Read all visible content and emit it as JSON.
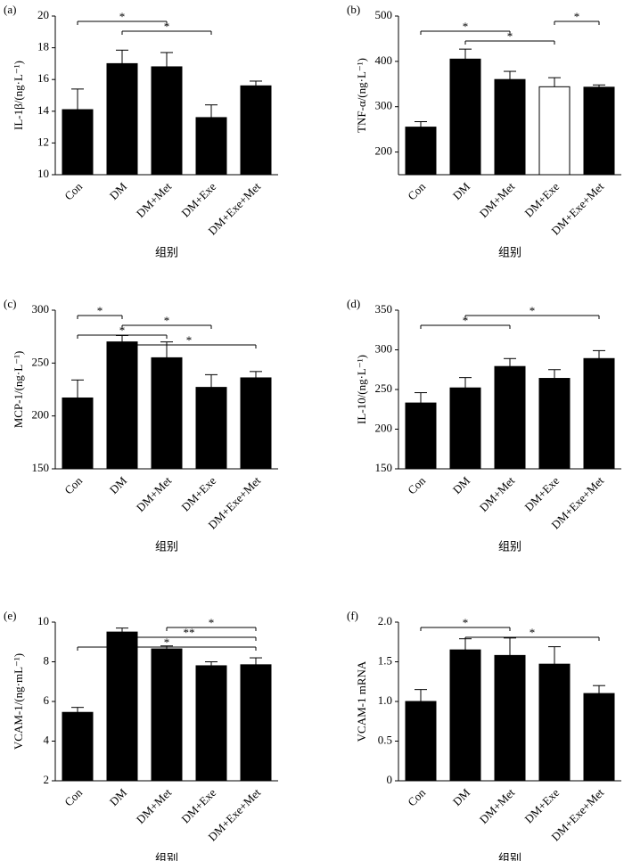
{
  "chart_data": [
    {
      "type": "bar",
      "panel": "(a)",
      "ylabel": "IL-1β/(ng·L⁻¹)",
      "xlabel": "组别",
      "categories": [
        "Con",
        "DM",
        "DM+Met",
        "DM+Exe",
        "DM+Exe+Met"
      ],
      "values": [
        14.1,
        17.0,
        16.8,
        13.6,
        15.6
      ],
      "errors": [
        1.3,
        0.85,
        0.9,
        0.8,
        0.3
      ],
      "colors": [
        "#000000",
        "#000000",
        "#000000",
        "#000000",
        "#000000"
      ],
      "ylim": [
        10,
        20
      ],
      "yticks": [
        10,
        12,
        14,
        16,
        18,
        20
      ],
      "significance": [
        {
          "groups": [
            "Con",
            "DM+Met"
          ],
          "label": "*"
        },
        {
          "groups": [
            "DM",
            "DM+Exe"
          ],
          "label": "*"
        }
      ]
    },
    {
      "type": "bar",
      "panel": "(b)",
      "ylabel": "TNF-α/(ng·L⁻¹)",
      "xlabel": "组别",
      "categories": [
        "Con",
        "DM",
        "DM+Met",
        "DM+Exe",
        "DM+Exe+Met"
      ],
      "values": [
        255,
        405,
        360,
        344,
        343
      ],
      "errors": [
        12,
        22,
        18,
        20,
        5
      ],
      "colors": [
        "#000000",
        "#000000",
        "#000000",
        "#ffffff",
        "#000000"
      ],
      "ylim": [
        150,
        500
      ],
      "yticks": [
        200,
        300,
        400,
        500
      ],
      "significance": [
        {
          "groups": [
            "DM+Exe",
            "DM+Exe+Met"
          ],
          "label": "*"
        },
        {
          "groups": [
            "Con",
            "DM+Met"
          ],
          "label": "*"
        },
        {
          "groups": [
            "DM",
            "DM+Exe"
          ],
          "label": "*"
        }
      ]
    },
    {
      "type": "bar",
      "panel": "(c)",
      "ylabel": "MCP-1/(ng·L⁻¹)",
      "xlabel": "组别",
      "categories": [
        "Con",
        "DM",
        "DM+Met",
        "DM+Exe",
        "DM+Exe+Met"
      ],
      "values": [
        217,
        270,
        255,
        227,
        236
      ],
      "errors": [
        17,
        6,
        15,
        12,
        6
      ],
      "colors": [
        "#000000",
        "#000000",
        "#000000",
        "#000000",
        "#000000"
      ],
      "ylim": [
        150,
        300
      ],
      "yticks": [
        150,
        200,
        250,
        300
      ],
      "significance": [
        {
          "groups": [
            "Con",
            "DM"
          ],
          "label": "*"
        },
        {
          "groups": [
            "DM",
            "DM+Exe"
          ],
          "label": "*"
        },
        {
          "groups": [
            "Con",
            "DM+Met"
          ],
          "label": "*"
        },
        {
          "groups": [
            "DM",
            "DM+Exe+Met"
          ],
          "label": "*"
        }
      ]
    },
    {
      "type": "bar",
      "panel": "(d)",
      "ylabel": "IL-10/(ng·L⁻¹)",
      "xlabel": "组别",
      "categories": [
        "Con",
        "DM",
        "DM+Met",
        "DM+Exe",
        "DM+Exe+Met"
      ],
      "values": [
        233,
        252,
        279,
        264,
        289
      ],
      "errors": [
        13,
        13,
        10,
        11,
        10
      ],
      "colors": [
        "#000000",
        "#000000",
        "#000000",
        "#000000",
        "#000000"
      ],
      "ylim": [
        150,
        350
      ],
      "yticks": [
        150,
        200,
        250,
        300,
        350
      ],
      "significance": [
        {
          "groups": [
            "DM",
            "DM+Exe+Met"
          ],
          "label": "*"
        },
        {
          "groups": [
            "Con",
            "DM+Met"
          ],
          "label": "*"
        }
      ]
    },
    {
      "type": "bar",
      "panel": "(e)",
      "ylabel": "VCAM-1/(ng·mL⁻¹)",
      "xlabel": "组别",
      "categories": [
        "Con",
        "DM",
        "DM+Met",
        "DM+Exe",
        "DM+Exe+Met"
      ],
      "values": [
        5.45,
        9.5,
        8.65,
        7.8,
        7.85
      ],
      "errors": [
        0.25,
        0.2,
        0.15,
        0.2,
        0.35
      ],
      "colors": [
        "#000000",
        "#000000",
        "#000000",
        "#000000",
        "#000000"
      ],
      "ylim": [
        2,
        10
      ],
      "yticks": [
        2,
        4,
        6,
        8,
        10
      ],
      "significance": [
        {
          "groups": [
            "DM+Met",
            "DM+Exe+Met"
          ],
          "label": "*"
        },
        {
          "groups": [
            "DM",
            "DM+Exe+Met"
          ],
          "label": "**"
        },
        {
          "groups": [
            "Con",
            "DM+Exe+Met"
          ],
          "label": "*"
        }
      ]
    },
    {
      "type": "bar",
      "panel": "(f)",
      "ylabel": "VCAM-1 mRNA",
      "xlabel": "组别",
      "categories": [
        "Con",
        "DM",
        "DM+Met",
        "DM+Exe",
        "DM+Exe+Met"
      ],
      "values": [
        1.0,
        1.65,
        1.58,
        1.47,
        1.1
      ],
      "errors": [
        0.15,
        0.14,
        0.22,
        0.22,
        0.1
      ],
      "colors": [
        "#000000",
        "#000000",
        "#000000",
        "#000000",
        "#000000"
      ],
      "ylim": [
        0,
        2
      ],
      "yticks": [
        0,
        0.5,
        {
          "value": 1,
          "label": "1.0"
        },
        1.5,
        {
          "value": 2,
          "label": "2.0"
        }
      ],
      "significance": [
        {
          "groups": [
            "Con",
            "DM+Met"
          ],
          "label": "*"
        },
        {
          "groups": [
            "DM",
            "DM+Exe+Met"
          ],
          "label": "*"
        }
      ]
    }
  ]
}
